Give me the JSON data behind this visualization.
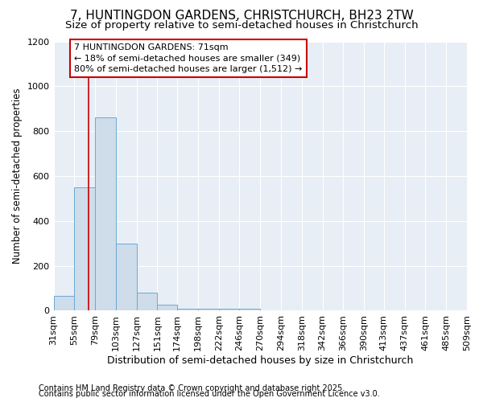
{
  "title1": "7, HUNTINGDON GARDENS, CHRISTCHURCH, BH23 2TW",
  "title2": "Size of property relative to semi-detached houses in Christchurch",
  "xlabel": "Distribution of semi-detached houses by size in Christchurch",
  "ylabel": "Number of semi-detached properties",
  "footnote1": "Contains HM Land Registry data © Crown copyright and database right 2025.",
  "footnote2": "Contains public sector information licensed under the Open Government Licence v3.0.",
  "annotation_title": "7 HUNTINGDON GARDENS: 71sqm",
  "annotation_line1": "← 18% of semi-detached houses are smaller (349)",
  "annotation_line2": "80% of semi-detached houses are larger (1,512) →",
  "property_line_x": 71,
  "bar_edges": [
    31,
    55,
    79,
    103,
    127,
    151,
    174,
    198,
    222,
    246,
    270,
    294,
    318,
    342,
    366,
    390,
    413,
    437,
    461,
    485,
    509
  ],
  "bar_heights": [
    65,
    550,
    860,
    300,
    80,
    25,
    10,
    8,
    10,
    8,
    0,
    0,
    0,
    0,
    0,
    0,
    0,
    0,
    0,
    0
  ],
  "bar_color": "#cfdce9",
  "bar_edge_color": "#6aaad4",
  "property_line_color": "#cc0000",
  "annotation_box_edge": "#cc0000",
  "annotation_fill": "#ffffff",
  "plot_bg_color": "#e8eef5",
  "fig_bg_color": "#ffffff",
  "ylim": [
    0,
    1200
  ],
  "yticks": [
    0,
    200,
    400,
    600,
    800,
    1000,
    1200
  ],
  "grid_color": "#ffffff",
  "title1_fontsize": 11,
  "title2_fontsize": 9.5,
  "tick_fontsize": 8,
  "ylabel_fontsize": 8.5,
  "xlabel_fontsize": 9,
  "footnote_fontsize": 7,
  "annot_fontsize": 8
}
